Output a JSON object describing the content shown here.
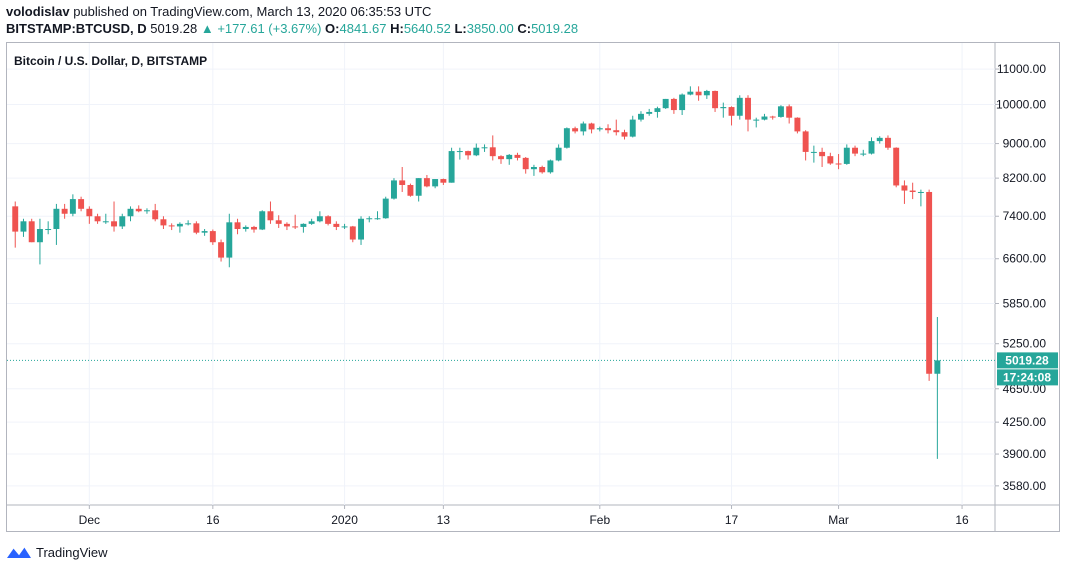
{
  "header": {
    "author": "volodislav",
    "published_text": "published on TradingView.com, March 13, 2020 06:35:53 UTC",
    "symbol": "BITSTAMP:BTCUSD, D",
    "last": "5019.28",
    "change": "▲ +177.61 (+3.67%)",
    "open_label": "O:",
    "open": "4841.67",
    "high_label": "H:",
    "high": "5640.52",
    "low_label": "L:",
    "low": "3850.00",
    "close_label": "C:",
    "close": "5019.28"
  },
  "chart_data": {
    "type": "candlestick",
    "title": "Bitcoin / U.S. Dollar, D, BITSTAMP",
    "y_ticks": [
      "11000.00",
      "10000.00",
      "9000.00",
      "8200.00",
      "7400.00",
      "6600.00",
      "5850.00",
      "5250.00",
      "4650.00",
      "4250.00",
      "3900.00",
      "3580.00"
    ],
    "y_scale": "log",
    "ylim": [
      3400,
      11800
    ],
    "x_ticks": [
      {
        "date": "2019-12-01",
        "label": "Dec"
      },
      {
        "date": "2019-12-16",
        "label": "16"
      },
      {
        "date": "2020-01-01",
        "label": "2020"
      },
      {
        "date": "2020-01-13",
        "label": "13"
      },
      {
        "date": "2020-02-01",
        "label": "Feb"
      },
      {
        "date": "2020-02-17",
        "label": "17"
      },
      {
        "date": "2020-03-01",
        "label": "Mar"
      },
      {
        "date": "2020-03-16",
        "label": "16"
      }
    ],
    "xlim": [
      "2019-11-21",
      "2020-03-20"
    ],
    "last_price_label": "5019.28",
    "countdown_label": "17:24:08",
    "grid": true,
    "up_color": "#26a69a",
    "down_color": "#ef5350",
    "candles": [
      {
        "date": "2019-11-22",
        "o": 7600,
        "h": 7700,
        "l": 6800,
        "c": 7100
      },
      {
        "date": "2019-11-23",
        "o": 7100,
        "h": 7350,
        "l": 7000,
        "c": 7300
      },
      {
        "date": "2019-11-24",
        "o": 7300,
        "h": 7350,
        "l": 6900,
        "c": 6900
      },
      {
        "date": "2019-11-25",
        "o": 6900,
        "h": 7350,
        "l": 6500,
        "c": 7150
      },
      {
        "date": "2019-11-26",
        "o": 7150,
        "h": 7300,
        "l": 7050,
        "c": 7150
      },
      {
        "date": "2019-11-27",
        "o": 7150,
        "h": 7650,
        "l": 6850,
        "c": 7550
      },
      {
        "date": "2019-11-28",
        "o": 7550,
        "h": 7650,
        "l": 7350,
        "c": 7450
      },
      {
        "date": "2019-11-29",
        "o": 7450,
        "h": 7850,
        "l": 7400,
        "c": 7750
      },
      {
        "date": "2019-11-30",
        "o": 7750,
        "h": 7800,
        "l": 7500,
        "c": 7550
      },
      {
        "date": "2019-12-01",
        "o": 7550,
        "h": 7600,
        "l": 7250,
        "c": 7400
      },
      {
        "date": "2019-12-02",
        "o": 7400,
        "h": 7450,
        "l": 7250,
        "c": 7300
      },
      {
        "date": "2019-12-03",
        "o": 7300,
        "h": 7450,
        "l": 7250,
        "c": 7300
      },
      {
        "date": "2019-12-04",
        "o": 7300,
        "h": 7700,
        "l": 7100,
        "c": 7200
      },
      {
        "date": "2019-12-05",
        "o": 7200,
        "h": 7450,
        "l": 7150,
        "c": 7400
      },
      {
        "date": "2019-12-06",
        "o": 7400,
        "h": 7600,
        "l": 7300,
        "c": 7550
      },
      {
        "date": "2019-12-07",
        "o": 7550,
        "h": 7620,
        "l": 7480,
        "c": 7500
      },
      {
        "date": "2019-12-08",
        "o": 7500,
        "h": 7560,
        "l": 7450,
        "c": 7520
      },
      {
        "date": "2019-12-09",
        "o": 7520,
        "h": 7650,
        "l": 7300,
        "c": 7340
      },
      {
        "date": "2019-12-10",
        "o": 7340,
        "h": 7400,
        "l": 7150,
        "c": 7220
      },
      {
        "date": "2019-12-11",
        "o": 7220,
        "h": 7260,
        "l": 7130,
        "c": 7200
      },
      {
        "date": "2019-12-12",
        "o": 7200,
        "h": 7280,
        "l": 7080,
        "c": 7250
      },
      {
        "date": "2019-12-13",
        "o": 7250,
        "h": 7320,
        "l": 7220,
        "c": 7260
      },
      {
        "date": "2019-12-14",
        "o": 7260,
        "h": 7300,
        "l": 7050,
        "c": 7080
      },
      {
        "date": "2019-12-15",
        "o": 7080,
        "h": 7150,
        "l": 7020,
        "c": 7110
      },
      {
        "date": "2019-12-16",
        "o": 7110,
        "h": 7140,
        "l": 6850,
        "c": 6900
      },
      {
        "date": "2019-12-17",
        "o": 6900,
        "h": 6950,
        "l": 6550,
        "c": 6620
      },
      {
        "date": "2019-12-18",
        "o": 6620,
        "h": 7450,
        "l": 6450,
        "c": 7280
      },
      {
        "date": "2019-12-19",
        "o": 7280,
        "h": 7350,
        "l": 7050,
        "c": 7150
      },
      {
        "date": "2019-12-20",
        "o": 7150,
        "h": 7220,
        "l": 7100,
        "c": 7190
      },
      {
        "date": "2019-12-21",
        "o": 7190,
        "h": 7210,
        "l": 7080,
        "c": 7140
      },
      {
        "date": "2019-12-22",
        "o": 7140,
        "h": 7520,
        "l": 7130,
        "c": 7500
      },
      {
        "date": "2019-12-23",
        "o": 7500,
        "h": 7700,
        "l": 7250,
        "c": 7320
      },
      {
        "date": "2019-12-24",
        "o": 7320,
        "h": 7420,
        "l": 7170,
        "c": 7250
      },
      {
        "date": "2019-12-25",
        "o": 7250,
        "h": 7280,
        "l": 7130,
        "c": 7200
      },
      {
        "date": "2019-12-26",
        "o": 7200,
        "h": 7430,
        "l": 7150,
        "c": 7190
      },
      {
        "date": "2019-12-27",
        "o": 7190,
        "h": 7260,
        "l": 7080,
        "c": 7250
      },
      {
        "date": "2019-12-28",
        "o": 7250,
        "h": 7350,
        "l": 7230,
        "c": 7300
      },
      {
        "date": "2019-12-29",
        "o": 7300,
        "h": 7500,
        "l": 7280,
        "c": 7400
      },
      {
        "date": "2019-12-30",
        "o": 7400,
        "h": 7420,
        "l": 7220,
        "c": 7250
      },
      {
        "date": "2019-12-31",
        "o": 7250,
        "h": 7300,
        "l": 7130,
        "c": 7190
      },
      {
        "date": "2020-01-01",
        "o": 7190,
        "h": 7250,
        "l": 7150,
        "c": 7200
      },
      {
        "date": "2020-01-02",
        "o": 7200,
        "h": 7210,
        "l": 6900,
        "c": 6950
      },
      {
        "date": "2020-01-03",
        "o": 6950,
        "h": 7400,
        "l": 6850,
        "c": 7350
      },
      {
        "date": "2020-01-04",
        "o": 7350,
        "h": 7400,
        "l": 7280,
        "c": 7360
      },
      {
        "date": "2020-01-05",
        "o": 7360,
        "h": 7500,
        "l": 7330,
        "c": 7360
      },
      {
        "date": "2020-01-06",
        "o": 7360,
        "h": 7800,
        "l": 7350,
        "c": 7760
      },
      {
        "date": "2020-01-07",
        "o": 7760,
        "h": 8200,
        "l": 7740,
        "c": 8150
      },
      {
        "date": "2020-01-08",
        "o": 8150,
        "h": 8450,
        "l": 7900,
        "c": 8050
      },
      {
        "date": "2020-01-09",
        "o": 8050,
        "h": 8080,
        "l": 7800,
        "c": 7820
      },
      {
        "date": "2020-01-10",
        "o": 7820,
        "h": 8200,
        "l": 7700,
        "c": 8200
      },
      {
        "date": "2020-01-11",
        "o": 8200,
        "h": 8270,
        "l": 8000,
        "c": 8020
      },
      {
        "date": "2020-01-12",
        "o": 8020,
        "h": 8180,
        "l": 7980,
        "c": 8180
      },
      {
        "date": "2020-01-13",
        "o": 8180,
        "h": 8190,
        "l": 8050,
        "c": 8100
      },
      {
        "date": "2020-01-14",
        "o": 8100,
        "h": 8900,
        "l": 8100,
        "c": 8820
      },
      {
        "date": "2020-01-15",
        "o": 8820,
        "h": 8900,
        "l": 8620,
        "c": 8820
      },
      {
        "date": "2020-01-16",
        "o": 8820,
        "h": 8830,
        "l": 8620,
        "c": 8720
      },
      {
        "date": "2020-01-17",
        "o": 8720,
        "h": 9000,
        "l": 8700,
        "c": 8900
      },
      {
        "date": "2020-01-18",
        "o": 8900,
        "h": 8980,
        "l": 8800,
        "c": 8910
      },
      {
        "date": "2020-01-19",
        "o": 8910,
        "h": 9200,
        "l": 8600,
        "c": 8700
      },
      {
        "date": "2020-01-20",
        "o": 8700,
        "h": 8720,
        "l": 8520,
        "c": 8630
      },
      {
        "date": "2020-01-21",
        "o": 8630,
        "h": 8750,
        "l": 8500,
        "c": 8730
      },
      {
        "date": "2020-01-22",
        "o": 8730,
        "h": 8780,
        "l": 8600,
        "c": 8660
      },
      {
        "date": "2020-01-23",
        "o": 8660,
        "h": 8680,
        "l": 8300,
        "c": 8400
      },
      {
        "date": "2020-01-24",
        "o": 8400,
        "h": 8500,
        "l": 8250,
        "c": 8450
      },
      {
        "date": "2020-01-25",
        "o": 8450,
        "h": 8480,
        "l": 8300,
        "c": 8330
      },
      {
        "date": "2020-01-26",
        "o": 8330,
        "h": 8620,
        "l": 8300,
        "c": 8600
      },
      {
        "date": "2020-01-27",
        "o": 8600,
        "h": 8980,
        "l": 8580,
        "c": 8900
      },
      {
        "date": "2020-01-28",
        "o": 8900,
        "h": 9400,
        "l": 8880,
        "c": 9380
      },
      {
        "date": "2020-01-29",
        "o": 9380,
        "h": 9420,
        "l": 9250,
        "c": 9300
      },
      {
        "date": "2020-01-30",
        "o": 9300,
        "h": 9550,
        "l": 9200,
        "c": 9500
      },
      {
        "date": "2020-01-31",
        "o": 9500,
        "h": 9520,
        "l": 9250,
        "c": 9350
      },
      {
        "date": "2020-02-01",
        "o": 9350,
        "h": 9420,
        "l": 9300,
        "c": 9380
      },
      {
        "date": "2020-02-02",
        "o": 9380,
        "h": 9480,
        "l": 9250,
        "c": 9330
      },
      {
        "date": "2020-02-03",
        "o": 9330,
        "h": 9600,
        "l": 9200,
        "c": 9280
      },
      {
        "date": "2020-02-04",
        "o": 9280,
        "h": 9340,
        "l": 9100,
        "c": 9170
      },
      {
        "date": "2020-02-05",
        "o": 9170,
        "h": 9700,
        "l": 9150,
        "c": 9600
      },
      {
        "date": "2020-02-06",
        "o": 9600,
        "h": 9820,
        "l": 9550,
        "c": 9750
      },
      {
        "date": "2020-02-07",
        "o": 9750,
        "h": 9880,
        "l": 9700,
        "c": 9800
      },
      {
        "date": "2020-02-08",
        "o": 9800,
        "h": 9940,
        "l": 9650,
        "c": 9900
      },
      {
        "date": "2020-02-09",
        "o": 9900,
        "h": 10150,
        "l": 9880,
        "c": 10150
      },
      {
        "date": "2020-02-10",
        "o": 10150,
        "h": 10180,
        "l": 9750,
        "c": 9850
      },
      {
        "date": "2020-02-11",
        "o": 9850,
        "h": 10300,
        "l": 9720,
        "c": 10270
      },
      {
        "date": "2020-02-12",
        "o": 10270,
        "h": 10500,
        "l": 10250,
        "c": 10350
      },
      {
        "date": "2020-02-13",
        "o": 10350,
        "h": 10500,
        "l": 10100,
        "c": 10250
      },
      {
        "date": "2020-02-14",
        "o": 10250,
        "h": 10400,
        "l": 10150,
        "c": 10370
      },
      {
        "date": "2020-02-15",
        "o": 10370,
        "h": 10380,
        "l": 9800,
        "c": 9900
      },
      {
        "date": "2020-02-16",
        "o": 9900,
        "h": 10050,
        "l": 9650,
        "c": 9930
      },
      {
        "date": "2020-02-17",
        "o": 9930,
        "h": 9950,
        "l": 9450,
        "c": 9700
      },
      {
        "date": "2020-02-18",
        "o": 9700,
        "h": 10250,
        "l": 9600,
        "c": 10180
      },
      {
        "date": "2020-02-19",
        "o": 10180,
        "h": 10250,
        "l": 9300,
        "c": 9600
      },
      {
        "date": "2020-02-20",
        "o": 9600,
        "h": 9650,
        "l": 9400,
        "c": 9600
      },
      {
        "date": "2020-02-21",
        "o": 9600,
        "h": 9750,
        "l": 9580,
        "c": 9680
      },
      {
        "date": "2020-02-22",
        "o": 9680,
        "h": 9700,
        "l": 9600,
        "c": 9670
      },
      {
        "date": "2020-02-23",
        "o": 9670,
        "h": 9980,
        "l": 9650,
        "c": 9950
      },
      {
        "date": "2020-02-24",
        "o": 9950,
        "h": 10000,
        "l": 9500,
        "c": 9650
      },
      {
        "date": "2020-02-25",
        "o": 9650,
        "h": 9660,
        "l": 9250,
        "c": 9300
      },
      {
        "date": "2020-02-26",
        "o": 9300,
        "h": 9330,
        "l": 8600,
        "c": 8800
      },
      {
        "date": "2020-02-27",
        "o": 8800,
        "h": 8950,
        "l": 8550,
        "c": 8800
      },
      {
        "date": "2020-02-28",
        "o": 8800,
        "h": 8900,
        "l": 8450,
        "c": 8700
      },
      {
        "date": "2020-02-29",
        "o": 8700,
        "h": 8780,
        "l": 8500,
        "c": 8530
      },
      {
        "date": "2020-03-01",
        "o": 8530,
        "h": 8750,
        "l": 8400,
        "c": 8520
      },
      {
        "date": "2020-03-02",
        "o": 8520,
        "h": 8980,
        "l": 8500,
        "c": 8900
      },
      {
        "date": "2020-03-03",
        "o": 8900,
        "h": 8950,
        "l": 8700,
        "c": 8760
      },
      {
        "date": "2020-03-04",
        "o": 8760,
        "h": 8850,
        "l": 8700,
        "c": 8760
      },
      {
        "date": "2020-03-05",
        "o": 8760,
        "h": 9150,
        "l": 8740,
        "c": 9060
      },
      {
        "date": "2020-03-06",
        "o": 9060,
        "h": 9180,
        "l": 9000,
        "c": 9140
      },
      {
        "date": "2020-03-07",
        "o": 9140,
        "h": 9200,
        "l": 8850,
        "c": 8900
      },
      {
        "date": "2020-03-08",
        "o": 8900,
        "h": 8910,
        "l": 8000,
        "c": 8040
      },
      {
        "date": "2020-03-09",
        "o": 8040,
        "h": 8150,
        "l": 7650,
        "c": 7930
      },
      {
        "date": "2020-03-10",
        "o": 7930,
        "h": 8100,
        "l": 7750,
        "c": 7900
      },
      {
        "date": "2020-03-11",
        "o": 7900,
        "h": 7950,
        "l": 7600,
        "c": 7900
      },
      {
        "date": "2020-03-12",
        "o": 7900,
        "h": 7950,
        "l": 4750,
        "c": 4841.67
      },
      {
        "date": "2020-03-13",
        "o": 4841.67,
        "h": 5640.52,
        "l": 3850,
        "c": 5019.28
      }
    ]
  },
  "footer": {
    "brand": "TradingView"
  }
}
